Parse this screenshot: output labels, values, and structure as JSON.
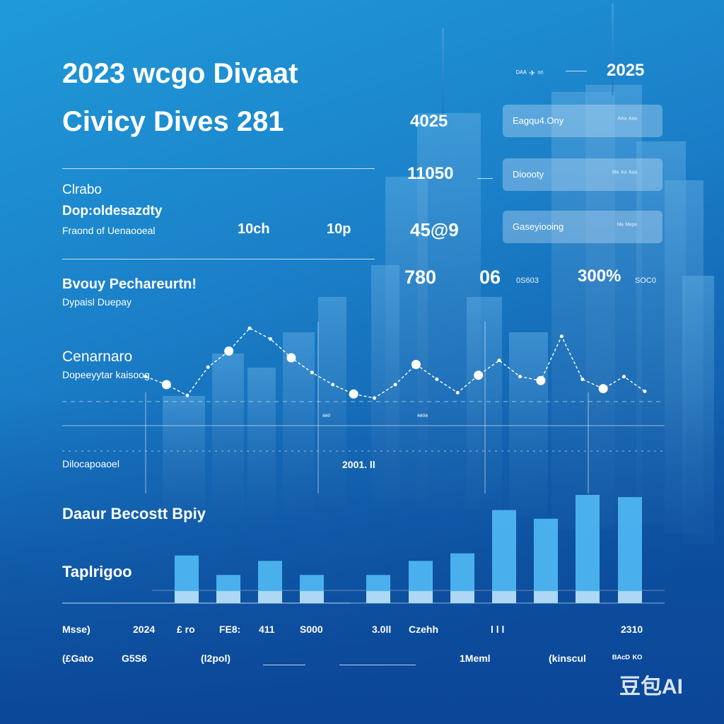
{
  "header": {
    "title_line1": "2023 wcgo Divaat",
    "title_line2": "Civicy Dives 281",
    "year": "2025",
    "logo_text": "ᴰᴬᴬ ✈ ᵒᵒ"
  },
  "left": {
    "s1_title": "Clrabo",
    "s1_sub": "Dop:oldesazdty",
    "s1_row": "Fraond of Uenaooeal",
    "s1_v1": "10ch",
    "s1_v2": "10p",
    "s2_title": "Bvouy Pechareurtn!",
    "s2_sub": "Dypaisl Duepay",
    "s3_title": "Cenarnaro",
    "s3_sub": "Dopeeyytar kaisoog",
    "s4_label": "Dilocapoaoel",
    "s5_title": "Daaur Becostt Bpiy",
    "s6_title": "Taplrigoo"
  },
  "stats": {
    "n1": "4025",
    "n2": "11050",
    "n3": "45@9",
    "n4": "780",
    "n5": "06",
    "n5_sub": "0S603",
    "n6": "300%",
    "n6_sub": "SOC0"
  },
  "cards": [
    {
      "label": "Eagqu4.Ony",
      "sub": "ᴬᴬᵃ ᴬᵃᵃ"
    },
    {
      "label": "Dioooty",
      "sub": "ᴹᵃ ᴬᵃ ᴬᵃᵃ"
    },
    {
      "label": "Gaseyiooing",
      "sub": "ᴹᵃ ᴹᵃᵖᵉ"
    }
  ],
  "line_labels": {
    "mid": "2001. ll",
    "tick_a": "ᵃᵃᵒ",
    "tick_b": "ᵃᵃᵒᵃ"
  },
  "footer": {
    "row1": [
      "Msse)",
      "2024",
      "£ ro",
      "FE8:",
      "411",
      "S000",
      "3.0ll",
      "Czehh",
      "l l l",
      "2310"
    ],
    "row2": [
      "(£Gato",
      "G5S6",
      "(l2pol)",
      "1Meml",
      "(kinscul",
      "ᴮᴬᶜᴰ ᴷᴼ"
    ]
  },
  "watermark": "豆包AI",
  "colors": {
    "accent": "#bfe6ff",
    "bar": "#4fb8f3",
    "line": "#ffffff"
  },
  "chart_data": [
    {
      "type": "line",
      "title": "",
      "xlabel": "",
      "ylabel": "",
      "ylim": [
        0,
        10
      ],
      "grid": true,
      "x": [
        1,
        2,
        3,
        4,
        5,
        6,
        7,
        8,
        9,
        10,
        11,
        12,
        13,
        14,
        15,
        16,
        17,
        18,
        19,
        20,
        21,
        22,
        23,
        24,
        25
      ],
      "series": [
        {
          "values": [
            4.6,
            4.0,
            3.2,
            5.3,
            6.5,
            8.2,
            7.4,
            6.0,
            4.9,
            4.0,
            3.3,
            3.0,
            4.0,
            5.5,
            4.4,
            3.4,
            4.7,
            5.8,
            4.6,
            4.3,
            7.6,
            4.4,
            3.7,
            4.6,
            3.5
          ]
        }
      ]
    },
    {
      "type": "bar",
      "title": "",
      "ylim": [
        0,
        10
      ],
      "categories": [
        "1",
        "2",
        "3",
        "4",
        "5",
        "6",
        "7",
        "8",
        "9",
        "10",
        "11"
      ],
      "values": [
        4.4,
        2.6,
        3.9,
        2.6,
        2.6,
        3.9,
        4.6,
        8.6,
        7.8,
        10.0,
        9.8
      ]
    }
  ]
}
